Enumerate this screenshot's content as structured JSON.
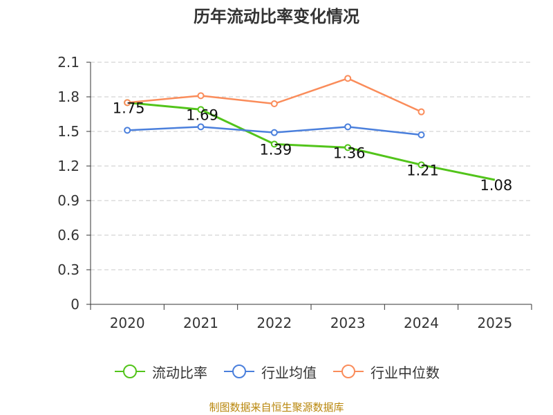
{
  "title": "历年流动比率变化情况",
  "source": "制图数据来自恒生聚源数据库",
  "chart_data": {
    "type": "line",
    "title": "历年流动比率变化情况",
    "categories": [
      "2020",
      "2021",
      "2022",
      "2023",
      "2024",
      "2025"
    ],
    "ylim": [
      0,
      2.1
    ],
    "yticks": [
      "0",
      "0.3",
      "0.6",
      "0.9",
      "1.2",
      "1.5",
      "1.8",
      "2.1"
    ],
    "ytick_values": [
      0,
      0.3,
      0.6,
      0.9,
      1.2,
      1.5,
      1.8,
      2.1
    ],
    "grid": true,
    "legend_position": "bottom",
    "series": [
      {
        "name": "流动比率",
        "color": "#52c41a",
        "values": [
          1.75,
          1.69,
          1.39,
          1.36,
          1.21,
          1.08
        ],
        "labels": [
          "1.75",
          "1.69",
          "1.39",
          "1.36",
          "1.21",
          "1.08"
        ]
      },
      {
        "name": "行业均值",
        "color": "#4a7fdc",
        "values": [
          1.51,
          1.54,
          1.49,
          1.54,
          1.47,
          null
        ]
      },
      {
        "name": "行业中位数",
        "color": "#fa8c5a",
        "values": [
          1.75,
          1.81,
          1.74,
          1.96,
          1.67,
          null
        ]
      }
    ]
  }
}
